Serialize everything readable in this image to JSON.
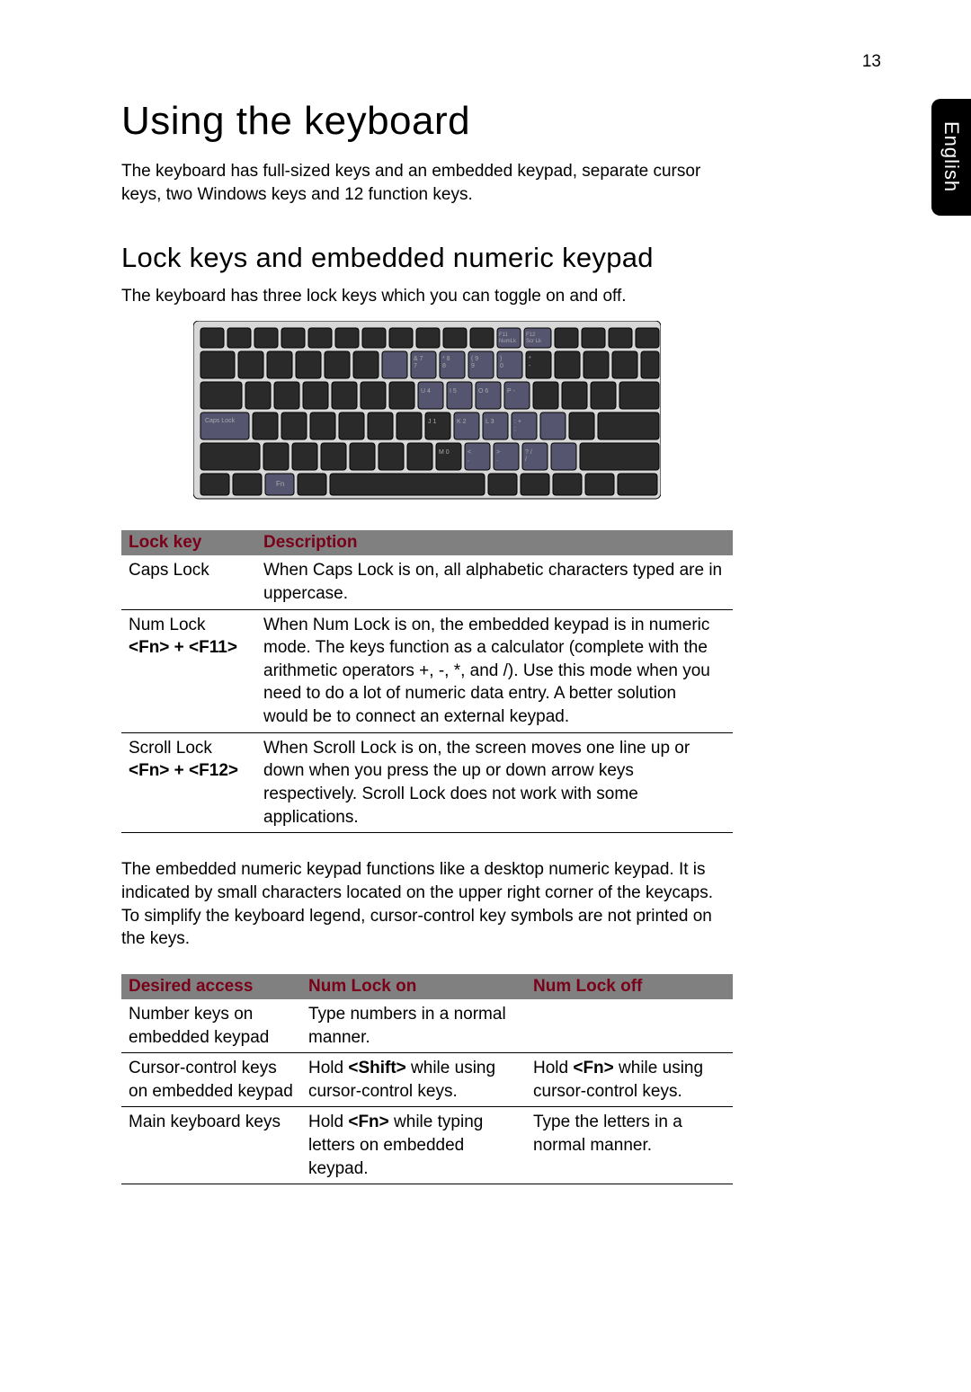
{
  "page_number": "13",
  "side_tab": "English",
  "h1": "Using the keyboard",
  "intro": "The keyboard has full-sized keys and an embedded keypad, separate cursor keys, two Windows keys and 12 function keys.",
  "h2": "Lock keys and embedded numeric keypad",
  "subintro": "The keyboard has three lock keys which you can toggle on and off.",
  "table1": {
    "headers": [
      "Lock key",
      "Description"
    ],
    "header_color": "#7a0019",
    "header_bg": "#808080",
    "rows": [
      {
        "key": "Caps Lock",
        "combo": "",
        "desc": "When Caps Lock is on, all alphabetic characters typed are in uppercase."
      },
      {
        "key": "Num Lock",
        "combo": "<Fn> + <F11>",
        "desc": "When Num Lock is on, the embedded keypad is in numeric mode. The keys function as a calculator (complete with the arithmetic operators +, -, *, and /). Use this mode when you need to do a lot of numeric data entry. A better solution would be to connect an external keypad."
      },
      {
        "key": "Scroll Lock",
        "combo": "<Fn> + <F12>",
        "desc": "When Scroll Lock is on, the screen moves one line up or down when you press the up or down arrow keys respectively. Scroll Lock does not work with some applications."
      }
    ]
  },
  "para2": "The embedded numeric keypad functions like a desktop numeric keypad. It is indicated by small characters located on the upper right corner of the keycaps. To simplify the keyboard legend, cursor-control key symbols are not printed on the keys.",
  "table2": {
    "headers": [
      "Desired access",
      "Num Lock on",
      "Num Lock off"
    ],
    "header_color": "#7a0019",
    "header_bg": "#808080",
    "rows": [
      {
        "access": "Number keys on embedded keypad",
        "on": "Type numbers in a normal manner.",
        "off": ""
      },
      {
        "access": "Cursor-control keys on embedded keypad",
        "on_pre": "Hold ",
        "on_bold": "<Shift>",
        "on_post": " while using cursor-control keys.",
        "off_pre": "Hold ",
        "off_bold": "<Fn>",
        "off_post": " while using cursor-control keys."
      },
      {
        "access": "Main keyboard keys",
        "on_pre": "Hold ",
        "on_bold": "<Fn>",
        "on_post": " while typing letters on embedded keypad.",
        "off": "Type the letters in a normal manner."
      }
    ]
  },
  "keyboard_svg": {
    "bg": "#d8d8d8",
    "key_fill": "#2a2a2a",
    "key_stroke": "#000",
    "hilite_fill": "#555570",
    "label_color": "#aaaaaa",
    "label_fontsize": 7,
    "fn_keys": [
      "F11\nNumLk",
      "F12\nScr Lk"
    ],
    "row2_labels": [
      "&  7\n7",
      "*  8\n8",
      "(  9\n9",
      ")\n0",
      "*\n-"
    ],
    "row3_labels": [
      "U  4",
      "I  5",
      "O  6",
      "P  -"
    ],
    "row4_labels": [
      "J  1",
      "K  2",
      "L  3",
      ":  +\n;"
    ],
    "row5_labels": [
      "M  0",
      "<\n,",
      ">\n.",
      "?  /\n/"
    ],
    "caps_label": "Caps Lock",
    "fn_label": "Fn"
  }
}
